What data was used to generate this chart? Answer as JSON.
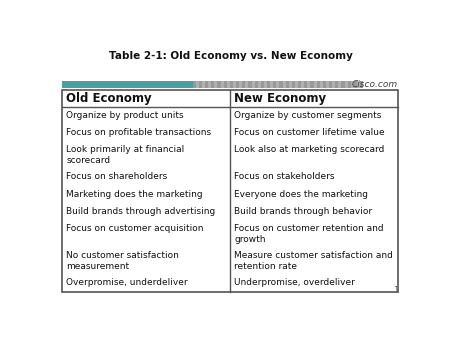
{
  "title": "Table 2-1: Old Economy vs. New Economy",
  "watermark": "Cisco.com",
  "col_headers": [
    "Old Economy",
    "New Economy"
  ],
  "old_economy": [
    "Organize by product units",
    "Focus on profitable transactions",
    "Look primarily at financial\nscorecard",
    "Focus on shareholders",
    "Marketing does the marketing",
    "Build brands through advertising",
    "Focus on customer acquisition",
    "No customer satisfaction\nmeasurement",
    "Overpromise, underdeliver"
  ],
  "new_economy": [
    "Organize by customer segments",
    "Focus on customer lifetime value",
    "Look also at marketing scorecard",
    "Focus on stakeholders",
    "Everyone does the marketing",
    "Build brands through behavior",
    "Focus on customer retention and\ngrowth",
    "Measure customer satisfaction and\nretention rate",
    "Underpromise, overdeliver"
  ],
  "page_bg": "#ffffff",
  "table_bg": "#ffffff",
  "border_color": "#555555",
  "header_font_size": 8.5,
  "body_font_size": 6.5,
  "title_font_size": 7.5,
  "watermark_font_size": 6.5,
  "teal_color": "#4a9fa0",
  "gray_color": "#b0b0b0",
  "text_color": "#111111"
}
